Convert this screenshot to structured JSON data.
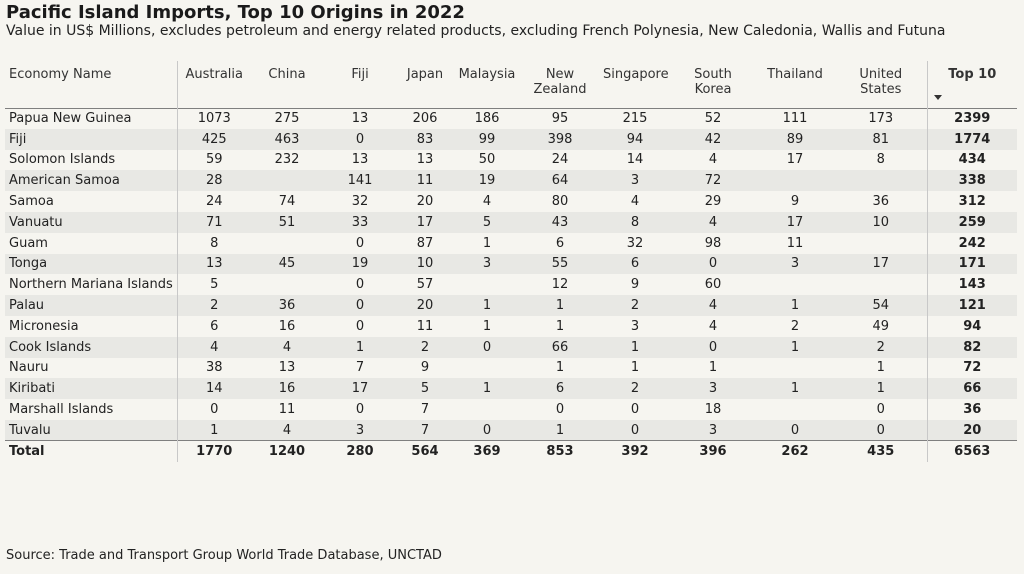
{
  "header": {
    "title": "Pacific Island Imports, Top 10 Origins in 2022",
    "subtitle": "Value in US$ Millions, excludes petroleum and energy related products, excluding French Polynesia, New Caledonia, Wallis and Futuna"
  },
  "footer": {
    "source": "Source: Trade and Transport Group World Trade Database, UNCTAD"
  },
  "chart_data": {
    "type": "table",
    "sort": {
      "column": "Top 10",
      "direction": "descending"
    },
    "columns": [
      "Economy Name",
      "Australia",
      "China",
      "Fiji",
      "Japan",
      "Malaysia",
      "New Zealand",
      "Singapore",
      "South Korea",
      "Thailand",
      "United States",
      "Top 10"
    ],
    "rows": [
      [
        "Papua New Guinea",
        "1073",
        "275",
        "13",
        "206",
        "186",
        "95",
        "215",
        "52",
        "111",
        "173",
        "2399"
      ],
      [
        "Fiji",
        "425",
        "463",
        "0",
        "83",
        "99",
        "398",
        "94",
        "42",
        "89",
        "81",
        "1774"
      ],
      [
        "Solomon Islands",
        "59",
        "232",
        "13",
        "13",
        "50",
        "24",
        "14",
        "4",
        "17",
        "8",
        "434"
      ],
      [
        "American Samoa",
        "28",
        "",
        "141",
        "11",
        "19",
        "64",
        "3",
        "72",
        "",
        "",
        "338"
      ],
      [
        "Samoa",
        "24",
        "74",
        "32",
        "20",
        "4",
        "80",
        "4",
        "29",
        "9",
        "36",
        "312"
      ],
      [
        "Vanuatu",
        "71",
        "51",
        "33",
        "17",
        "5",
        "43",
        "8",
        "4",
        "17",
        "10",
        "259"
      ],
      [
        "Guam",
        "8",
        "",
        "0",
        "87",
        "1",
        "6",
        "32",
        "98",
        "11",
        "",
        "242"
      ],
      [
        "Tonga",
        "13",
        "45",
        "19",
        "10",
        "3",
        "55",
        "6",
        "0",
        "3",
        "17",
        "171"
      ],
      [
        "Northern Mariana Islands",
        "5",
        "",
        "0",
        "57",
        "",
        "12",
        "9",
        "60",
        "",
        "",
        "143"
      ],
      [
        "Palau",
        "2",
        "36",
        "0",
        "20",
        "1",
        "1",
        "2",
        "4",
        "1",
        "54",
        "121"
      ],
      [
        "Micronesia",
        "6",
        "16",
        "0",
        "11",
        "1",
        "1",
        "3",
        "4",
        "2",
        "49",
        "94"
      ],
      [
        "Cook Islands",
        "4",
        "4",
        "1",
        "2",
        "0",
        "66",
        "1",
        "0",
        "1",
        "2",
        "82"
      ],
      [
        "Nauru",
        "38",
        "13",
        "7",
        "9",
        "",
        "1",
        "1",
        "1",
        "",
        "1",
        "72"
      ],
      [
        "Kiribati",
        "14",
        "16",
        "17",
        "5",
        "1",
        "6",
        "2",
        "3",
        "1",
        "1",
        "66"
      ],
      [
        "Marshall Islands",
        "0",
        "11",
        "0",
        "7",
        "",
        "0",
        "0",
        "18",
        "",
        "0",
        "36"
      ],
      [
        "Tuvalu",
        "1",
        "4",
        "3",
        "7",
        "0",
        "1",
        "0",
        "3",
        "0",
        "0",
        "20"
      ]
    ],
    "total": [
      "Total",
      "1770",
      "1240",
      "280",
      "564",
      "369",
      "853",
      "392",
      "396",
      "262",
      "435",
      "6563"
    ]
  }
}
